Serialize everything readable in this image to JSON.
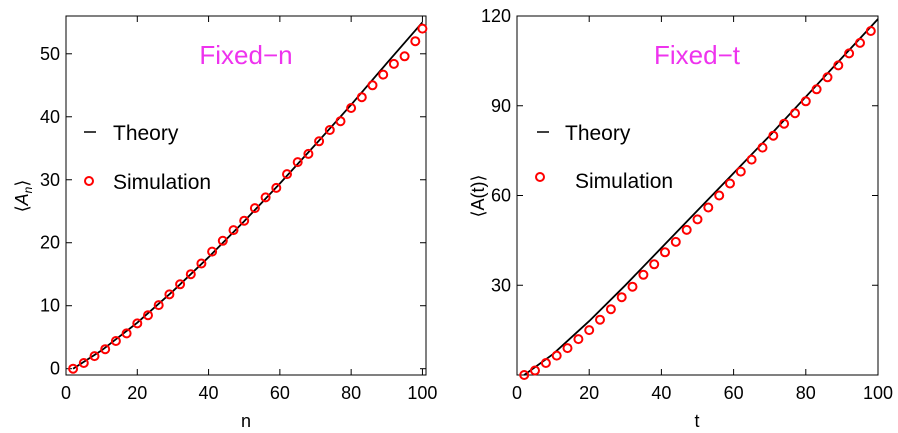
{
  "chart_data": [
    {
      "type": "line",
      "title": "Fixed−n",
      "title_color": "#ee33ee",
      "xlabel": "n",
      "ylabel": "⟨Aₙ⟩",
      "ylabel_main": "A",
      "ylabel_sub": "n",
      "xlim": [
        0,
        101
      ],
      "ylim": [
        -1,
        56
      ],
      "xticks": [
        0,
        20,
        40,
        60,
        80,
        100
      ],
      "xtick_labels": [
        "0",
        "20",
        "40",
        "60",
        "80",
        "100"
      ],
      "yticks": [
        0,
        10,
        20,
        30,
        40,
        50
      ],
      "ytick_labels": [
        "0",
        "10",
        "20",
        "30",
        "40",
        "50"
      ],
      "grid": false,
      "legend_position": "middle-left",
      "series": [
        {
          "name": "Theory",
          "kind": "line",
          "color": "#000000",
          "x": [
            2,
            10,
            20,
            30,
            40,
            50,
            60,
            70,
            80,
            90,
            100
          ],
          "y": [
            0,
            2.9,
            7.3,
            12.3,
            17.7,
            23.4,
            29.4,
            35.6,
            41.9,
            48.5,
            55.0
          ]
        },
        {
          "name": "Simulation",
          "kind": "scatter",
          "color": "#ff0000",
          "x": [
            2,
            5,
            8,
            11,
            14,
            17,
            20,
            23,
            26,
            29,
            32,
            35,
            38,
            41,
            44,
            47,
            50,
            53,
            56,
            59,
            62,
            65,
            68,
            71,
            74,
            77,
            80,
            83,
            86,
            89,
            92,
            95,
            98,
            100
          ],
          "y": [
            0,
            0.9,
            2.0,
            3.1,
            4.4,
            5.6,
            7.2,
            8.5,
            10.1,
            11.8,
            13.4,
            15.0,
            16.7,
            18.6,
            20.3,
            22.0,
            23.5,
            25.5,
            27.2,
            28.7,
            30.9,
            32.8,
            34.1,
            36.1,
            37.9,
            39.3,
            41.4,
            43.1,
            45.0,
            46.7,
            48.4,
            49.6,
            52.0,
            54.0
          ]
        }
      ]
    },
    {
      "type": "line",
      "title": "Fixed−t",
      "title_color": "#ee33ee",
      "xlabel": "t",
      "ylabel": "⟨A(t)⟩",
      "xlim": [
        0,
        100
      ],
      "ylim": [
        0,
        120
      ],
      "xticks": [
        0,
        20,
        40,
        60,
        80,
        100
      ],
      "xtick_labels": [
        "0",
        "20",
        "40",
        "60",
        "80",
        "100"
      ],
      "yticks": [
        30,
        60,
        90,
        120
      ],
      "ytick_labels": [
        "30",
        "60",
        "90",
        "120"
      ],
      "grid": false,
      "legend_position": "middle-left",
      "series": [
        {
          "name": "Theory",
          "kind": "line",
          "color": "#000000",
          "x": [
            2,
            10,
            20,
            30,
            40,
            50,
            60,
            70,
            80,
            90,
            100
          ],
          "y": [
            0,
            7,
            18,
            30,
            42.5,
            55,
            67.5,
            80,
            93,
            106,
            119
          ]
        },
        {
          "name": "Simulation",
          "kind": "scatter",
          "color": "#ff0000",
          "x": [
            2,
            5,
            8,
            11,
            14,
            17,
            20,
            23,
            26,
            29,
            32,
            35,
            38,
            41,
            44,
            47,
            50,
            53,
            56,
            59,
            62,
            65,
            68,
            71,
            74,
            77,
            80,
            83,
            86,
            89,
            92,
            95,
            98
          ],
          "y": [
            0,
            1.5,
            4,
            6.5,
            9,
            12,
            15,
            18.5,
            22,
            26,
            29.5,
            33.5,
            37,
            41,
            44.5,
            48.5,
            52,
            56,
            60,
            64,
            68,
            72,
            76,
            80,
            84,
            87.5,
            91.5,
            95.5,
            99.5,
            103.5,
            107.5,
            111,
            115
          ]
        }
      ]
    }
  ]
}
